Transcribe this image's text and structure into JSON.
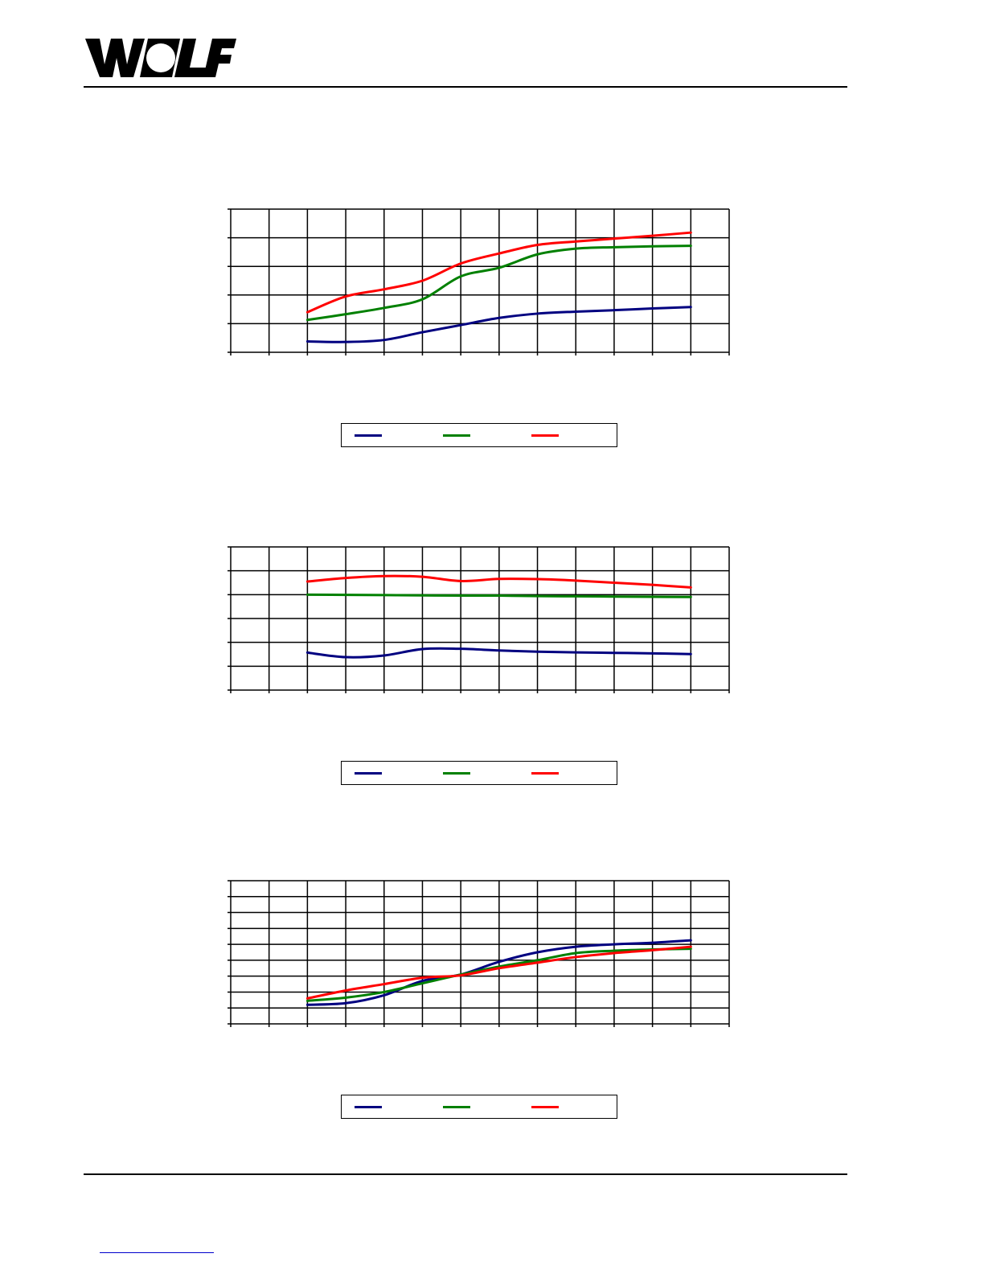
{
  "brand": {
    "logo_text": "WOLF",
    "logo_color": "#000000"
  },
  "colors": {
    "series1": "#000080",
    "series2": "#008000",
    "series3": "#ff0000",
    "grid": "#000000"
  },
  "chart_data": [
    {
      "type": "line",
      "x": [
        2,
        3,
        4,
        5,
        6,
        7,
        8,
        9,
        10,
        11,
        12
      ],
      "xlim": [
        0,
        13
      ],
      "ylim": [
        0,
        5
      ],
      "y_gridlines": 5,
      "grid": true,
      "legend": "bottom",
      "series": [
        {
          "color": "#000080",
          "values": [
            0.38,
            0.36,
            0.43,
            0.7,
            0.95,
            1.2,
            1.35,
            1.42,
            1.47,
            1.53,
            1.58
          ]
        },
        {
          "color": "#008000",
          "values": [
            1.13,
            1.33,
            1.55,
            1.85,
            2.65,
            2.95,
            3.42,
            3.62,
            3.67,
            3.7,
            3.72
          ]
        },
        {
          "color": "#ff0000",
          "values": [
            1.4,
            1.95,
            2.2,
            2.5,
            3.1,
            3.45,
            3.75,
            3.87,
            3.97,
            4.07,
            4.18
          ]
        }
      ]
    },
    {
      "type": "line",
      "x": [
        2,
        3,
        4,
        5,
        6,
        7,
        8,
        9,
        10,
        11,
        12
      ],
      "xlim": [
        0,
        13
      ],
      "ylim": [
        0,
        6
      ],
      "y_gridlines": 6,
      "grid": true,
      "legend": "bottom",
      "series": [
        {
          "color": "#000080",
          "values": [
            1.57,
            1.38,
            1.45,
            1.72,
            1.73,
            1.66,
            1.61,
            1.58,
            1.56,
            1.54,
            1.51
          ]
        },
        {
          "color": "#008000",
          "values": [
            4.0,
            3.99,
            3.98,
            3.97,
            3.96,
            3.96,
            3.94,
            3.93,
            3.92,
            3.91,
            3.9
          ]
        },
        {
          "color": "#ff0000",
          "values": [
            4.55,
            4.7,
            4.78,
            4.75,
            4.57,
            4.66,
            4.65,
            4.59,
            4.5,
            4.41,
            4.3
          ]
        }
      ]
    },
    {
      "type": "line",
      "x": [
        2,
        3,
        4,
        5,
        6,
        7,
        8,
        9,
        10,
        11,
        12
      ],
      "xlim": [
        0,
        13
      ],
      "ylim": [
        0,
        9
      ],
      "y_gridlines": 9,
      "grid": true,
      "legend": "bottom",
      "series": [
        {
          "color": "#000080",
          "values": [
            1.2,
            1.3,
            1.8,
            2.7,
            3.1,
            3.9,
            4.5,
            4.85,
            5.0,
            5.1,
            5.25
          ]
        },
        {
          "color": "#008000",
          "values": [
            1.45,
            1.65,
            2.0,
            2.55,
            3.1,
            3.6,
            4.0,
            4.45,
            4.6,
            4.68,
            4.72
          ]
        },
        {
          "color": "#ff0000",
          "values": [
            1.6,
            2.1,
            2.5,
            2.9,
            3.05,
            3.5,
            3.85,
            4.2,
            4.45,
            4.63,
            4.85
          ]
        }
      ]
    }
  ]
}
